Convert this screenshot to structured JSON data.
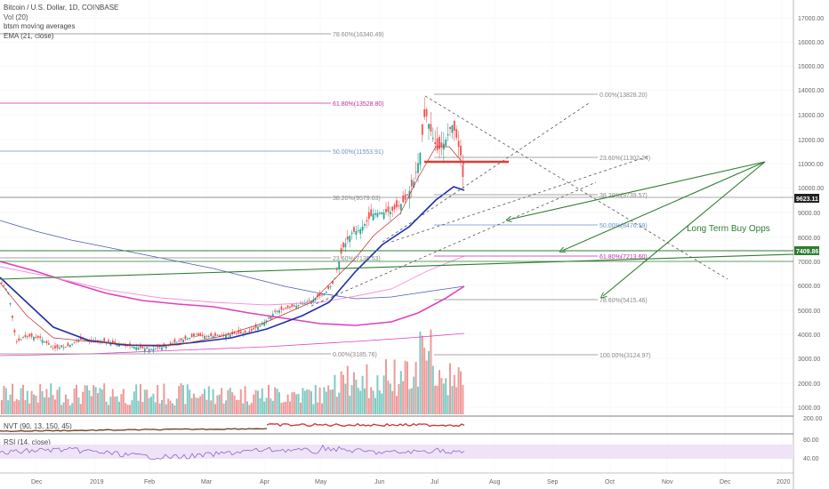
{
  "legend": {
    "title": "Bitcoin / U.S. Dollar, 1D, COINBASE",
    "vol": "Vol (20)",
    "ma": "btsm moving averages",
    "ema": "EMA (21, close)"
  },
  "indicators": {
    "nvt": "NVT (90, 13, 150, 45)",
    "rsi": "RSI (14, close)"
  },
  "annotation": "Long Term Buy Opps",
  "price_axis": [
    "17000.00",
    "16000.00",
    "15000.00",
    "14000.00",
    "13000.00",
    "12000.00",
    "11000.00",
    "10000.00",
    "9000.00",
    "8000.00",
    "7000.00",
    "6000.00",
    "5000.00",
    "4000.00",
    "3000.00",
    "2000.00",
    "1000.00"
  ],
  "nvt_axis": [
    "200.00"
  ],
  "rsi_axis": [
    "80.00",
    "40.00"
  ],
  "current_price": "9623.11",
  "level_tag": "7409.86",
  "time_axis": [
    "Dec",
    "2019",
    "Feb",
    "Mar",
    "Apr",
    "May",
    "Jun",
    "Jul",
    "Aug",
    "Sep",
    "Oct",
    "Nov",
    "Dec",
    "2020"
  ],
  "fib_left": [
    {
      "label": "78.60%(16340.49)",
      "color": "#888888"
    },
    {
      "label": "61.80%(13528.80)",
      "color": "#c02bb0"
    },
    {
      "label": "50.00%(11553.91)",
      "color": "#6a8fd0"
    },
    {
      "label": "38.20%(9579.03)",
      "color": "#888888"
    },
    {
      "label": "23.60%(7135.53)",
      "color": "#888888"
    },
    {
      "label": "0.00%(3185.76)",
      "color": "#888888"
    }
  ],
  "fib_right": [
    {
      "label": "0.00%(13828.20)",
      "color": "#888888"
    },
    {
      "label": "23.60%(11302.24)",
      "color": "#888888"
    },
    {
      "label": "38.20%(9739.57)",
      "color": "#888888"
    },
    {
      "label": "50.00%(8476.59)",
      "color": "#6a8fd0"
    },
    {
      "label": "61.80%(7213.60)",
      "color": "#c02bb0"
    },
    {
      "label": "78.60%(5415.46)",
      "color": "#888888"
    },
    {
      "label": "100.00%(3124.97)",
      "color": "#888888"
    }
  ],
  "colors": {
    "up": "#26a69a",
    "down": "#ef5350",
    "ema": "#1f2fa8",
    "ma_pink": "#e040c0",
    "trend_green": "#2e7d32",
    "red_level": "#e53935",
    "price_tag": "#222222"
  }
}
